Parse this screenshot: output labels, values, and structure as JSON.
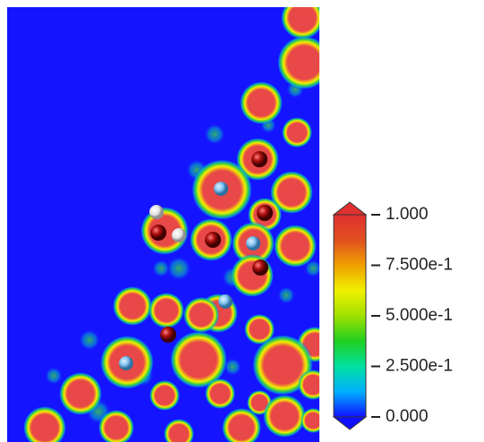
{
  "chart_data": {
    "type": "colorbar",
    "zlim": [
      0,
      1
    ],
    "zticks": [
      {
        "value": 0,
        "label": "0.000"
      },
      {
        "value": 0.25,
        "label": "2.500e-1"
      },
      {
        "value": 0.5,
        "label": "5.000e-1"
      },
      {
        "value": 0.75,
        "label": "7.500e-1"
      },
      {
        "value": 1,
        "label": "1.000"
      }
    ],
    "colors": [
      "#1010ff",
      "#00b0ff",
      "#00e0a0",
      "#20d020",
      "#a0e000",
      "#f0f000",
      "#f0a000",
      "#e05020",
      "#e03030"
    ]
  }
}
